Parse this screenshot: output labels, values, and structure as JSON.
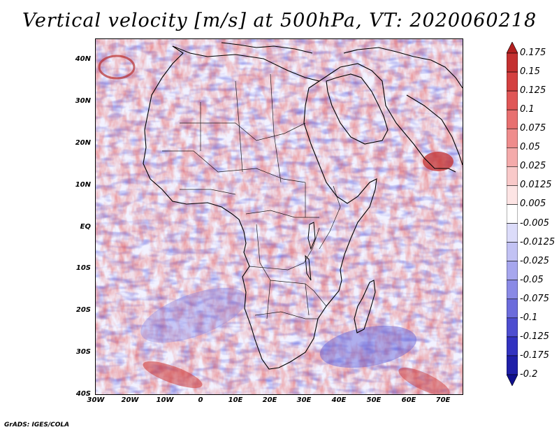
{
  "title": "Vertical velocity [m/s] at 500hPa, VT: 2020060218",
  "credit": "GrADS: IGES/COLA",
  "map": {
    "lat_labels": [
      "40N",
      "30N",
      "20N",
      "10N",
      "EQ",
      "10S",
      "20S",
      "30S",
      "40S"
    ],
    "lon_labels": [
      "30W",
      "20W",
      "10W",
      "0",
      "10E",
      "20E",
      "30E",
      "40E",
      "50E",
      "60E",
      "70E"
    ]
  },
  "colorbar": {
    "labels": [
      "0.175",
      "0.15",
      "0.125",
      "0.1",
      "0.075",
      "0.05",
      "0.025",
      "0.0125",
      "0.005",
      "-0.005",
      "-0.0125",
      "-0.025",
      "-0.05",
      "-0.075",
      "-0.1",
      "-0.125",
      "-0.175",
      "-0.2"
    ],
    "colors": [
      "#b21f1f",
      "#c43030",
      "#d44040",
      "#e05656",
      "#e87070",
      "#ef8c8c",
      "#f4aaaa",
      "#f9c9c9",
      "#fde4e4",
      "#ffffff",
      "#dcdcfa",
      "#c2c2f4",
      "#a6a6ee",
      "#8a8ae6",
      "#6c6cdc",
      "#4d4dd0",
      "#3232c0",
      "#1f1fa8",
      "#10108e"
    ]
  }
}
